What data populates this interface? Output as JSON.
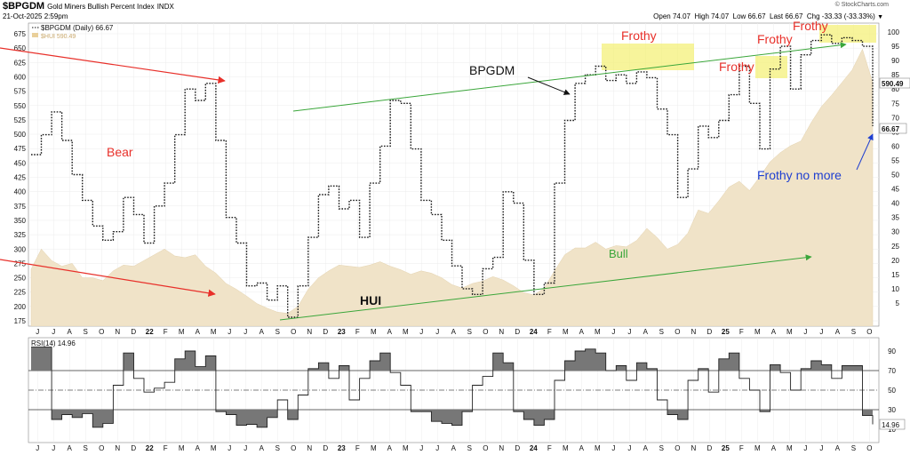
{
  "header": {
    "symbol": "$BPGDM",
    "name": "Gold Miners Bullish Percent Index",
    "exchange": "INDX",
    "date": "21-Oct-2025 2:59pm",
    "brand": "© StockCharts.com",
    "open_label": "Open",
    "open": "74.07",
    "high_label": "High",
    "high": "74.07",
    "low_label": "Low",
    "low": "66.67",
    "last_label": "Last",
    "last": "66.67",
    "chg_label": "Chg",
    "chg": "-33.33 (-33.33%)"
  },
  "legend": {
    "bpgdm": "$BPGDM (Daily) 66.67",
    "hui": "$HUI 590.49",
    "rsi": "RSI(14) 14.96"
  },
  "annotations": {
    "bear": "Bear",
    "bull": "Bull",
    "hui": "HUI",
    "bpgdm": "BPGDM",
    "frothy": "Frothy",
    "frothy_no_more": "Frothy no more"
  },
  "colors": {
    "bpgdm_line": "#1a1a1a",
    "hui_area": "#f0e3c8",
    "red_arrow": "#e8302a",
    "green_line": "#3aa63a",
    "blue_text": "#1f3fd0",
    "frothy_highlight": "#f4f07a",
    "rsi_fill": "#777777"
  },
  "chart_data": [
    {
      "type": "line",
      "title": "Gold Miners Bullish Percent Index",
      "y_axis_right": {
        "ylim": [
          0,
          100
        ],
        "ticks": [
          5,
          10,
          15,
          20,
          25,
          30,
          35,
          40,
          45,
          50,
          55,
          60,
          65,
          70,
          75,
          80,
          85,
          90,
          95,
          100
        ]
      },
      "y_axis_left": {
        "ylim": [
          163,
          698
        ],
        "ticks": [
          175,
          200,
          225,
          250,
          275,
          300,
          325,
          350,
          375,
          400,
          425,
          450,
          475,
          500,
          525,
          550,
          575,
          600,
          625,
          650,
          675
        ]
      },
      "x_ticks": [
        "J",
        "J",
        "A",
        "S",
        "O",
        "N",
        "D",
        "22",
        "F",
        "M",
        "A",
        "M",
        "J",
        "J",
        "A",
        "S",
        "O",
        "N",
        "D",
        "23",
        "F",
        "M",
        "A",
        "M",
        "J",
        "J",
        "A",
        "S",
        "O",
        "N",
        "D",
        "24",
        "F",
        "M",
        "A",
        "M",
        "J",
        "J",
        "A",
        "S",
        "O",
        "N",
        "D",
        "25",
        "F",
        "M",
        "A",
        "M",
        "J",
        "J",
        "A",
        "S",
        "O"
      ],
      "series": [
        {
          "name": "$BPGDM",
          "points": [
            [
              0,
              57
            ],
            [
              2,
              64
            ],
            [
              4,
              72
            ],
            [
              6,
              62
            ],
            [
              8,
              50
            ],
            [
              10,
              41
            ],
            [
              12,
              32
            ],
            [
              14,
              27
            ],
            [
              16,
              30
            ],
            [
              18,
              42
            ],
            [
              20,
              36
            ],
            [
              22,
              26
            ],
            [
              24,
              39
            ],
            [
              26,
              47
            ],
            [
              28,
              64
            ],
            [
              30,
              80
            ],
            [
              32,
              76
            ],
            [
              34,
              82
            ],
            [
              36,
              62
            ],
            [
              38,
              35
            ],
            [
              40,
              26
            ],
            [
              42,
              11
            ],
            [
              44,
              12
            ],
            [
              46,
              6
            ],
            [
              48,
              11
            ],
            [
              50,
              0
            ],
            [
              52,
              11
            ],
            [
              54,
              28
            ],
            [
              56,
              43
            ],
            [
              58,
              46
            ],
            [
              60,
              38
            ],
            [
              62,
              41
            ],
            [
              64,
              28
            ],
            [
              66,
              47
            ],
            [
              68,
              60
            ],
            [
              70,
              76
            ],
            [
              72,
              75
            ],
            [
              74,
              59
            ],
            [
              76,
              41
            ],
            [
              78,
              36
            ],
            [
              80,
              27
            ],
            [
              82,
              18
            ],
            [
              84,
              10
            ],
            [
              86,
              8
            ],
            [
              88,
              17
            ],
            [
              90,
              21
            ],
            [
              92,
              44
            ],
            [
              94,
              40
            ],
            [
              96,
              20
            ],
            [
              98,
              8
            ],
            [
              100,
              12
            ],
            [
              102,
              47
            ],
            [
              104,
              69
            ],
            [
              106,
              82
            ],
            [
              108,
              85
            ],
            [
              110,
              88
            ],
            [
              112,
              83
            ],
            [
              114,
              85
            ],
            [
              116,
              82
            ],
            [
              118,
              86
            ],
            [
              120,
              84
            ],
            [
              122,
              73
            ],
            [
              124,
              64
            ],
            [
              126,
              42
            ],
            [
              128,
              52
            ],
            [
              130,
              67
            ],
            [
              132,
              63
            ],
            [
              134,
              69
            ],
            [
              136,
              78
            ],
            [
              138,
              88
            ],
            [
              140,
              75
            ],
            [
              142,
              59
            ],
            [
              144,
              87
            ],
            [
              146,
              95
            ],
            [
              148,
              80
            ],
            [
              150,
              92
            ],
            [
              152,
              97
            ],
            [
              154,
              99
            ],
            [
              156,
              96
            ],
            [
              158,
              98
            ],
            [
              160,
              97
            ],
            [
              162,
              95
            ],
            [
              164,
              67
            ]
          ]
        },
        {
          "name": "$HUI",
          "points": [
            [
              0,
              265
            ],
            [
              2,
              300
            ],
            [
              4,
              280
            ],
            [
              6,
              270
            ],
            [
              8,
              275
            ],
            [
              10,
              250
            ],
            [
              12,
              250
            ],
            [
              14,
              245
            ],
            [
              16,
              262
            ],
            [
              18,
              272
            ],
            [
              20,
              270
            ],
            [
              22,
              280
            ],
            [
              24,
              290
            ],
            [
              26,
              300
            ],
            [
              28,
              288
            ],
            [
              30,
              285
            ],
            [
              32,
              290
            ],
            [
              34,
              270
            ],
            [
              36,
              258
            ],
            [
              38,
              240
            ],
            [
              40,
              230
            ],
            [
              42,
              218
            ],
            [
              44,
              205
            ],
            [
              46,
              197
            ],
            [
              48,
              190
            ],
            [
              50,
              188
            ],
            [
              52,
              200
            ],
            [
              54,
              230
            ],
            [
              56,
              250
            ],
            [
              58,
              262
            ],
            [
              60,
              272
            ],
            [
              62,
              270
            ],
            [
              64,
              268
            ],
            [
              66,
              272
            ],
            [
              68,
              278
            ],
            [
              70,
              270
            ],
            [
              72,
              264
            ],
            [
              74,
              256
            ],
            [
              76,
              262
            ],
            [
              78,
              258
            ],
            [
              80,
              250
            ],
            [
              82,
              238
            ],
            [
              84,
              232
            ],
            [
              86,
              240
            ],
            [
              88,
              244
            ],
            [
              90,
              252
            ],
            [
              92,
              246
            ],
            [
              94,
              236
            ],
            [
              96,
              224
            ],
            [
              98,
              220
            ],
            [
              100,
              232
            ],
            [
              102,
              262
            ],
            [
              104,
              290
            ],
            [
              106,
              302
            ],
            [
              108,
              302
            ],
            [
              110,
              312
            ],
            [
              112,
              300
            ],
            [
              114,
              306
            ],
            [
              116,
              304
            ],
            [
              118,
              315
            ],
            [
              120,
              336
            ],
            [
              122,
              320
            ],
            [
              124,
              300
            ],
            [
              126,
              308
            ],
            [
              128,
              328
            ],
            [
              130,
              368
            ],
            [
              132,
              362
            ],
            [
              134,
              384
            ],
            [
              136,
              408
            ],
            [
              138,
              418
            ],
            [
              140,
              402
            ],
            [
              142,
              426
            ],
            [
              144,
              452
            ],
            [
              146,
              468
            ],
            [
              148,
              480
            ],
            [
              150,
              488
            ],
            [
              152,
              520
            ],
            [
              154,
              548
            ],
            [
              156,
              568
            ],
            [
              158,
              590
            ],
            [
              160,
              612
            ],
            [
              162,
              648
            ],
            [
              164,
              590
            ]
          ]
        }
      ]
    },
    {
      "type": "line",
      "title": "RSI(14)",
      "ylim": [
        0,
        100
      ],
      "y_ticks": [
        10,
        30,
        50,
        70,
        90
      ],
      "reference_lines": [
        30,
        50,
        70
      ],
      "series": [
        {
          "name": "RSI(14)",
          "points": [
            [
              0,
              94
            ],
            [
              2,
              94
            ],
            [
              4,
              20
            ],
            [
              6,
              25
            ],
            [
              8,
              22
            ],
            [
              10,
              26
            ],
            [
              12,
              12
            ],
            [
              14,
              16
            ],
            [
              16,
              55
            ],
            [
              18,
              88
            ],
            [
              20,
              62
            ],
            [
              22,
              48
            ],
            [
              24,
              52
            ],
            [
              26,
              58
            ],
            [
              28,
              82
            ],
            [
              30,
              90
            ],
            [
              32,
              74
            ],
            [
              34,
              85
            ],
            [
              36,
              28
            ],
            [
              38,
              25
            ],
            [
              40,
              14
            ],
            [
              42,
              15
            ],
            [
              44,
              12
            ],
            [
              46,
              22
            ],
            [
              48,
              40
            ],
            [
              50,
              20
            ],
            [
              52,
              45
            ],
            [
              54,
              72
            ],
            [
              56,
              78
            ],
            [
              58,
              62
            ],
            [
              60,
              75
            ],
            [
              62,
              40
            ],
            [
              64,
              62
            ],
            [
              66,
              80
            ],
            [
              68,
              88
            ],
            [
              70,
              68
            ],
            [
              72,
              55
            ],
            [
              74,
              28
            ],
            [
              76,
              28
            ],
            [
              78,
              18
            ],
            [
              80,
              16
            ],
            [
              82,
              14
            ],
            [
              84,
              28
            ],
            [
              86,
              55
            ],
            [
              88,
              64
            ],
            [
              90,
              88
            ],
            [
              92,
              78
            ],
            [
              94,
              28
            ],
            [
              96,
              20
            ],
            [
              98,
              14
            ],
            [
              100,
              20
            ],
            [
              102,
              60
            ],
            [
              104,
              80
            ],
            [
              106,
              90
            ],
            [
              108,
              92
            ],
            [
              110,
              88
            ],
            [
              112,
              70
            ],
            [
              114,
              75
            ],
            [
              116,
              60
            ],
            [
              118,
              78
            ],
            [
              120,
              72
            ],
            [
              122,
              40
            ],
            [
              124,
              25
            ],
            [
              126,
              20
            ],
            [
              128,
              60
            ],
            [
              130,
              72
            ],
            [
              132,
              48
            ],
            [
              134,
              82
            ],
            [
              136,
              88
            ],
            [
              138,
              62
            ],
            [
              140,
              50
            ],
            [
              142,
              28
            ],
            [
              144,
              76
            ],
            [
              146,
              68
            ],
            [
              148,
              50
            ],
            [
              150,
              72
            ],
            [
              152,
              80
            ],
            [
              154,
              76
            ],
            [
              156,
              62
            ],
            [
              158,
              75
            ],
            [
              160,
              75
            ],
            [
              162,
              24
            ],
            [
              164,
              15
            ]
          ]
        }
      ]
    }
  ]
}
